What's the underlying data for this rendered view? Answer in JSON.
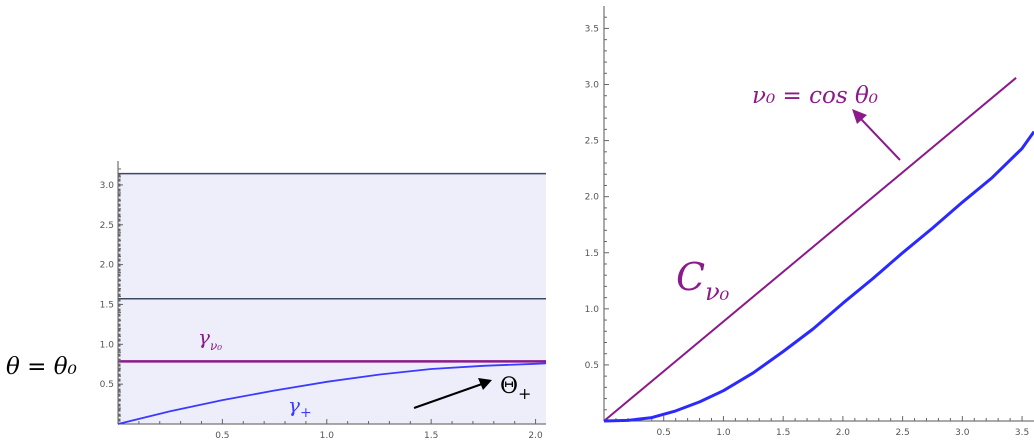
{
  "chart_data": [
    {
      "type": "line",
      "panel": "left",
      "xlim": [
        0,
        2.05
      ],
      "ylim": [
        0,
        3.3
      ],
      "x_ticks": [
        0.5,
        1.0,
        1.5,
        2.0
      ],
      "y_ticks": [
        0.5,
        1.0,
        1.5,
        2.0,
        2.5,
        3.0
      ],
      "x_tick_labels": [
        "0.5",
        "1.0",
        "1.5",
        "2.0"
      ],
      "y_tick_labels": [
        "0.5",
        "1.0",
        "1.5",
        "2.0",
        "2.5",
        "3.0"
      ],
      "shaded_region": {
        "x": [
          0,
          2.05
        ],
        "y": [
          0,
          3.1416
        ],
        "color": "#eeeefb"
      },
      "horizontal_lines": [
        {
          "y": 3.1416,
          "color": "#3a4a60"
        },
        {
          "y": 1.5708,
          "color": "#3a4a60"
        },
        {
          "y": 0.7854,
          "color": "#8b1a8b"
        }
      ],
      "series": [
        {
          "color": "#3b3bff",
          "x": [
            0,
            0.25,
            0.5,
            0.75,
            1.0,
            1.25,
            1.5,
            1.75,
            2.0,
            2.05
          ],
          "y": [
            0,
            0.16,
            0.3,
            0.42,
            0.53,
            0.62,
            0.69,
            0.73,
            0.755,
            0.76
          ]
        }
      ],
      "annotations": {
        "theta_eq": "θ = θ₀",
        "gamma_nu0": "γ",
        "gamma_nu0_sub": "ν₀",
        "gamma_plus": "γ",
        "gamma_plus_sub": "+",
        "theta_plus": "Θ",
        "theta_plus_sub": "+"
      }
    },
    {
      "type": "line",
      "panel": "right",
      "xlim": [
        0,
        3.6
      ],
      "ylim": [
        0,
        3.7
      ],
      "x_ticks": [
        0.5,
        1.0,
        1.5,
        2.0,
        2.5,
        3.0,
        3.5
      ],
      "y_ticks": [
        0.5,
        1.0,
        1.5,
        2.0,
        2.5,
        3.0,
        3.5
      ],
      "x_tick_labels": [
        "0.5",
        "1.0",
        "1.5",
        "2.0",
        "2.5",
        "3.0",
        "3.5"
      ],
      "y_tick_labels": [
        "0.5",
        "1.0",
        "1.5",
        "2.0",
        "2.5",
        "3.0",
        "3.5"
      ],
      "series": [
        {
          "color": "#8b1a8b",
          "x": [
            0,
            3.45
          ],
          "y": [
            0,
            3.06
          ]
        },
        {
          "color": "#2a2aff",
          "x": [
            0,
            0.2,
            0.4,
            0.6,
            0.8,
            1.0,
            1.25,
            1.5,
            1.75,
            2.0,
            2.25,
            2.5,
            2.75,
            3.0,
            3.25,
            3.5,
            3.6
          ],
          "y": [
            0,
            0.005,
            0.03,
            0.09,
            0.17,
            0.27,
            0.43,
            0.62,
            0.82,
            1.05,
            1.27,
            1.5,
            1.72,
            1.95,
            2.17,
            2.43,
            2.58
          ]
        }
      ],
      "annotations": {
        "nu_eq": "ν₀ = cos θ₀",
        "c_main": "C",
        "c_sub": "ν₀"
      }
    }
  ]
}
